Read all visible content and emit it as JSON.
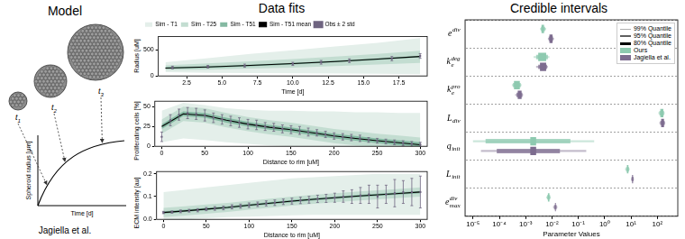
{
  "panel_titles": {
    "model": "Model",
    "fits": "Data fits",
    "intervals": "Credible intervals"
  },
  "model": {
    "time_labels": [
      {
        "base": "t",
        "sub": "1"
      },
      {
        "base": "t",
        "sub": "2"
      },
      {
        "base": "t",
        "sub": "3"
      }
    ],
    "ylabel": "Spheroid radius [µm]",
    "xlabel": "Time [d]",
    "caption": "Jagiella et al."
  },
  "chart_data": [
    {
      "type": "line",
      "xlabel": "Time [d]",
      "ylabel": "Radius [uM]",
      "legend": "top",
      "grid": false,
      "x": [
        1,
        4,
        7,
        10,
        13,
        16,
        19
      ],
      "bands": [
        {
          "name": "Sim - T1",
          "color": "#e4efea",
          "lower": [
            70,
            60,
            55,
            50,
            45,
            40,
            35
          ],
          "upper": [
            260,
            340,
            420,
            490,
            560,
            630,
            720
          ]
        },
        {
          "name": "Sim - T25",
          "color": "#c3ddd1",
          "lower": [
            110,
            120,
            140,
            160,
            190,
            220,
            250
          ],
          "upper": [
            200,
            240,
            280,
            320,
            370,
            420,
            480
          ]
        },
        {
          "name": "Sim - T51",
          "color": "#84b9a2",
          "lower": [
            135,
            155,
            185,
            220,
            260,
            305,
            355
          ],
          "upper": [
            165,
            185,
            215,
            250,
            290,
            335,
            385
          ]
        }
      ],
      "series": [
        {
          "name": "Sim - T51 mean",
          "color": "#000000",
          "values": [
            150,
            170,
            200,
            235,
            275,
            320,
            370
          ]
        }
      ],
      "observations": {
        "name": "Obs ± 2 std",
        "color": "#6f6480",
        "x": [
          1.5,
          4,
          6.6,
          10,
          12,
          14,
          17,
          19
        ],
        "values": [
          160,
          175,
          195,
          230,
          260,
          290,
          330,
          380
        ],
        "error": [
          25,
          25,
          30,
          30,
          35,
          35,
          40,
          45
        ]
      },
      "xlim": [
        0.5,
        19.5
      ],
      "xticks": [
        2.5,
        {
          "value": 5,
          "label": "5.0"
        },
        7.5,
        {
          "value": 10,
          "label": "10.0"
        },
        12.5,
        {
          "value": 15,
          "label": "15.0"
        },
        17.5
      ],
      "ylim": [
        0,
        750
      ],
      "yticks": [
        0,
        500
      ]
    },
    {
      "type": "line",
      "xlabel": "Distance to rim [uM]",
      "ylabel": "Proliferating cells [%]",
      "grid": false,
      "x": [
        0,
        25,
        50,
        75,
        100,
        125,
        150,
        175,
        200,
        225,
        250,
        275,
        300
      ],
      "bands": [
        {
          "name": "Sim - T1",
          "color": "#e4efea",
          "lower": [
            5,
            10,
            8,
            5,
            3,
            1,
            0,
            0,
            0,
            0,
            0,
            0,
            0
          ],
          "upper": [
            45,
            55,
            52,
            48,
            46,
            45,
            45,
            44,
            44,
            43,
            43,
            42,
            42
          ]
        },
        {
          "name": "Sim - T25",
          "color": "#c3ddd1",
          "lower": [
            16,
            32,
            30,
            24,
            19,
            15,
            12,
            8,
            4,
            1,
            0,
            0,
            0
          ],
          "upper": [
            34,
            50,
            48,
            42,
            37,
            33,
            30,
            26,
            22,
            19,
            16,
            13.5,
            11
          ]
        },
        {
          "name": "Sim - T51",
          "color": "#84b9a2",
          "lower": [
            22,
            38,
            36,
            30,
            25,
            21,
            18,
            14,
            10,
            7,
            4,
            1.5,
            0
          ],
          "upper": [
            28,
            44,
            42,
            36,
            31,
            27,
            24,
            20,
            16,
            13,
            10,
            7.5,
            5
          ]
        }
      ],
      "series": [
        {
          "name": "Sim - T51 mean",
          "color": "#000000",
          "values": [
            25,
            41,
            39,
            33,
            28,
            24,
            21,
            17,
            13,
            10,
            7,
            4.5,
            2
          ]
        }
      ],
      "observations": {
        "name": "Obs ± 2 std",
        "color": "#6f6480",
        "x": [
          0,
          10,
          20,
          30,
          40,
          50,
          60,
          70,
          80,
          90,
          100,
          110,
          120,
          130,
          140,
          150,
          160,
          170,
          180,
          190,
          200,
          210,
          220,
          230,
          240,
          250,
          260,
          270,
          280,
          290,
          300
        ],
        "values": [
          12,
          33,
          40,
          42,
          41,
          39,
          36,
          34,
          32,
          30,
          28,
          27,
          25,
          24,
          22,
          21,
          20,
          18,
          17,
          15,
          13,
          12,
          11,
          10,
          8,
          7,
          6,
          5,
          4,
          3,
          2
        ],
        "error": [
          6,
          7,
          7,
          7,
          7,
          7,
          6,
          6,
          6,
          6,
          6,
          6,
          5,
          5,
          5,
          5,
          5,
          5,
          4,
          4,
          4,
          4,
          4,
          4,
          3,
          3,
          3,
          3,
          3,
          3,
          3
        ]
      },
      "xlim": [
        -8,
        308
      ],
      "xticks": [
        0,
        50,
        100,
        150,
        200,
        250,
        300
      ],
      "ylim": [
        0,
        57
      ],
      "yticks": [
        0,
        25,
        50
      ]
    },
    {
      "type": "line",
      "xlabel": "Distance to rim [uM]",
      "ylabel": "ECM intensity [au]",
      "grid": false,
      "x": [
        0,
        25,
        50,
        75,
        100,
        125,
        150,
        175,
        200,
        225,
        250,
        275,
        300
      ],
      "bands": [
        {
          "name": "Sim - T1",
          "color": "#e4efea",
          "lower": [
            0,
            0,
            0.005,
            0.01,
            0.012,
            0.015,
            0.018,
            0.02,
            0.02,
            0.02,
            0.02,
            0.02,
            0.02
          ],
          "upper": [
            0.12,
            0.13,
            0.14,
            0.15,
            0.16,
            0.17,
            0.18,
            0.185,
            0.19,
            0.195,
            0.2,
            0.2,
            0.2
          ]
        },
        {
          "name": "Sim - T25",
          "color": "#c3ddd1",
          "lower": [
            0.01,
            0.017,
            0.025,
            0.032,
            0.042,
            0.051,
            0.06,
            0.068,
            0.075,
            0.082,
            0.088,
            0.094,
            0.1
          ],
          "upper": [
            0.05,
            0.057,
            0.065,
            0.072,
            0.082,
            0.091,
            0.1,
            0.108,
            0.115,
            0.122,
            0.128,
            0.134,
            0.14
          ]
        },
        {
          "name": "Sim - T51",
          "color": "#84b9a2",
          "lower": [
            0.025,
            0.032,
            0.04,
            0.047,
            0.057,
            0.066,
            0.075,
            0.083,
            0.09,
            0.097,
            0.103,
            0.109,
            0.115
          ],
          "upper": [
            0.035,
            0.042,
            0.05,
            0.057,
            0.067,
            0.076,
            0.085,
            0.093,
            0.1,
            0.107,
            0.113,
            0.119,
            0.125
          ]
        }
      ],
      "series": [
        {
          "name": "Sim - T51 mean",
          "color": "#000000",
          "values": [
            0.03,
            0.037,
            0.045,
            0.052,
            0.062,
            0.071,
            0.08,
            0.088,
            0.095,
            0.102,
            0.108,
            0.114,
            0.12
          ]
        }
      ],
      "observations": {
        "name": "Obs ± 2 std",
        "color": "#6f6480",
        "x": [
          0,
          10,
          20,
          30,
          40,
          50,
          60,
          70,
          80,
          90,
          100,
          110,
          120,
          130,
          140,
          150,
          160,
          170,
          180,
          190,
          200,
          210,
          220,
          230,
          240,
          250,
          260,
          270,
          280,
          290,
          300
        ],
        "values": [
          0.03,
          0.032,
          0.035,
          0.038,
          0.04,
          0.045,
          0.048,
          0.05,
          0.055,
          0.058,
          0.062,
          0.066,
          0.07,
          0.073,
          0.077,
          0.08,
          0.083,
          0.086,
          0.09,
          0.092,
          0.095,
          0.1,
          0.1,
          0.105,
          0.11,
          0.1,
          0.11,
          0.115,
          0.12,
          0.12,
          0.12
        ],
        "error": [
          0.005,
          0.005,
          0.006,
          0.006,
          0.007,
          0.007,
          0.008,
          0.008,
          0.009,
          0.009,
          0.01,
          0.01,
          0.011,
          0.012,
          0.012,
          0.013,
          0.014,
          0.015,
          0.016,
          0.018,
          0.02,
          0.025,
          0.03,
          0.035,
          0.04,
          0.05,
          0.04,
          0.06,
          0.05,
          0.06,
          0.07
        ]
      },
      "xlim": [
        -8,
        308
      ],
      "xticks": [
        0,
        50,
        100,
        150,
        200,
        250,
        300
      ],
      "ylim": [
        0,
        0.21
      ],
      "yticks": [
        {
          "value": 0,
          "label": "0.0"
        },
        0.1,
        0.2
      ]
    },
    {
      "type": "interval",
      "orientation": "horizontal",
      "xlabel": "Parameter Values",
      "log": "x",
      "grid": true,
      "legend": "upper right",
      "categories": [
        {
          "base": "e",
          "sup": "div"
        },
        {
          "base": "k",
          "sub": "e",
          "sup": "deg"
        },
        {
          "base": "k",
          "sub": "e",
          "sup": "pro"
        },
        {
          "base": "L",
          "sub": "div"
        },
        {
          "base": "q",
          "sub": "init"
        },
        {
          "base": "L",
          "sub": "init"
        },
        {
          "base": "e",
          "sub": "max",
          "sup": "div"
        }
      ],
      "quantiles": [
        "99% Quantile",
        "95% Quantile",
        "80% Quantile"
      ],
      "series": [
        {
          "name": "Ours",
          "color": "#8ecab0",
          "intervals": [
            [
              [
                0.0035,
                0.006
              ],
              [
                0.002,
                0.008
              ],
              [
                0.0003,
                0.0007
              ],
              [
                110,
                190
              ],
              [
                1e-05,
                0.4
              ],
              [
                6,
                9
              ],
              [
                0.006,
                0.009
              ]
            ],
            [
              [
                0.0038,
                0.0055
              ],
              [
                0.0025,
                0.007
              ],
              [
                0.00033,
                0.00065
              ],
              [
                120,
                180
              ],
              [
                3e-05,
                0.05
              ],
              [
                6.5,
                8.5
              ],
              [
                0.0065,
                0.0085
              ]
            ],
            [
              [
                0.004,
                0.005
              ],
              [
                0.003,
                0.006
              ],
              [
                0.00036,
                0.0006
              ],
              [
                130,
                170
              ],
              [
                0.0015,
                0.0025
              ],
              [
                7,
                8
              ],
              [
                0.007,
                0.008
              ]
            ]
          ]
        },
        {
          "name": "Jagiella et al.",
          "color": "#7d6c8f",
          "intervals": [
            [
              [
                0.007,
                0.012
              ],
              [
                0.0025,
                0.007
              ],
              [
                0.0004,
                0.0008
              ],
              [
                120,
                200
              ],
              [
                2e-05,
                0.2
              ],
              [
                10,
                13
              ],
              [
                0.011,
                0.016
              ]
            ],
            [
              [
                0.0075,
                0.011
              ],
              [
                0.003,
                0.0065
              ],
              [
                0.00045,
                0.00075
              ],
              [
                130,
                190
              ],
              [
                8e-05,
                0.02
              ],
              [
                10.5,
                12.5
              ],
              [
                0.012,
                0.015
              ]
            ],
            [
              [
                0.008,
                0.0105
              ],
              [
                0.0035,
                0.006
              ],
              [
                0.0005,
                0.0007
              ],
              [
                140,
                180
              ],
              [
                0.0015,
                0.0025
              ],
              [
                11,
                12
              ],
              [
                0.013,
                0.014
              ]
            ]
          ]
        }
      ],
      "xlim": [
        5e-06,
        600
      ],
      "xticks": [
        {
          "value": 1e-05,
          "label": "10⁻⁵"
        },
        {
          "value": 0.0001,
          "label": "10⁻⁴"
        },
        {
          "value": 0.001,
          "label": "10⁻³"
        },
        {
          "value": 0.01,
          "label": "10⁻²"
        },
        {
          "value": 0.1,
          "label": "10⁻¹"
        },
        {
          "value": 1,
          "label": "10⁰"
        },
        {
          "value": 10,
          "label": "10¹"
        },
        {
          "value": 100,
          "label": "10²"
        }
      ]
    }
  ]
}
